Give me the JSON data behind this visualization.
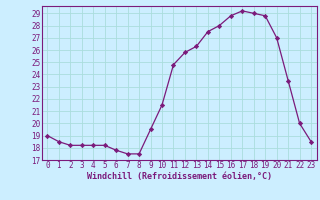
{
  "x": [
    0,
    1,
    2,
    3,
    4,
    5,
    6,
    7,
    8,
    9,
    10,
    11,
    12,
    13,
    14,
    15,
    16,
    17,
    18,
    19,
    20,
    21,
    22,
    23
  ],
  "y": [
    19,
    18.5,
    18.2,
    18.2,
    18.2,
    18.2,
    17.8,
    17.5,
    17.5,
    19.5,
    21.5,
    24.8,
    25.8,
    26.3,
    27.5,
    28.0,
    28.8,
    29.2,
    29.0,
    28.8,
    27.0,
    23.5,
    20.0,
    18.5
  ],
  "line_color": "#7B1A7B",
  "marker": "D",
  "markersize": 2.2,
  "linewidth": 0.9,
  "background_color": "#cceeff",
  "grid_color": "#aadddd",
  "xlabel": "Windchill (Refroidissement éolien,°C)",
  "yticks": [
    17,
    18,
    19,
    20,
    21,
    22,
    23,
    24,
    25,
    26,
    27,
    28,
    29
  ],
  "xlim": [
    -0.5,
    23.5
  ],
  "ylim": [
    17,
    29.6
  ],
  "tick_fontsize": 5.5,
  "xlabel_fontsize": 6.0,
  "tick_color": "#7B1A7B",
  "spine_color": "#7B1A7B"
}
